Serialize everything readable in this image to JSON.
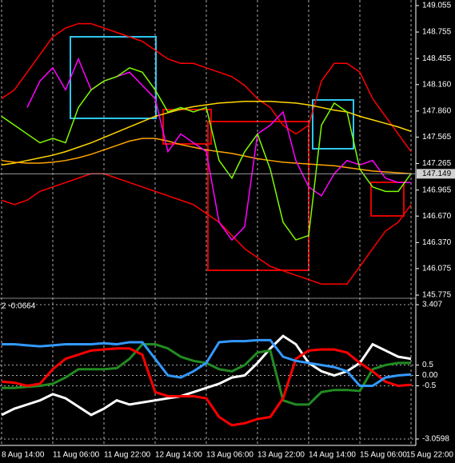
{
  "chart_data": [
    {
      "type": "line",
      "ylim": [
        145.748,
        149.118
      ],
      "yticks": [
        149.055,
        148.755,
        148.455,
        {
          "value": 148.16,
          "label": "148.160"
        },
        {
          "value": 147.86,
          "label": "147.860"
        },
        147.565,
        147.265,
        146.965,
        {
          "value": 146.67,
          "label": "146.670"
        },
        {
          "value": 146.37,
          "label": "146.370"
        },
        146.075,
        145.775
      ],
      "current_price": 147.149,
      "series": [
        {
          "color": "#ff0000",
          "values": [
            148.0,
            148.1,
            148.3,
            148.5,
            148.7,
            148.8,
            148.85,
            148.85,
            148.8,
            148.75,
            148.7,
            148.65,
            148.55,
            148.45,
            148.4,
            148.4,
            148.35,
            148.3,
            148.25,
            148.15,
            148.0,
            147.9,
            147.7,
            147.6,
            147.7,
            148.2,
            148.4,
            148.4,
            148.3,
            148.0,
            147.8,
            147.6,
            147.4
          ]
        },
        {
          "color": "#ff0000",
          "values": [
            146.85,
            146.8,
            146.85,
            146.95,
            147.0,
            147.05,
            147.1,
            147.15,
            147.15,
            147.1,
            147.05,
            147.0,
            146.95,
            146.9,
            146.85,
            146.8,
            146.7,
            146.6,
            146.45,
            146.3,
            146.2,
            146.1,
            146.05,
            146.0,
            145.95,
            145.9,
            145.9,
            145.9,
            146.1,
            146.3,
            146.5,
            146.6,
            146.8
          ]
        },
        {
          "color": "#ffd700",
          "values": [
            147.25,
            147.27,
            147.3,
            147.33,
            147.36,
            147.4,
            147.45,
            147.5,
            147.56,
            147.62,
            147.68,
            147.74,
            147.8,
            147.84,
            147.88,
            147.91,
            147.93,
            147.95,
            147.96,
            147.97,
            147.97,
            147.97,
            147.96,
            147.95,
            147.93,
            147.9,
            147.87,
            147.85,
            147.8,
            147.76,
            147.72,
            147.68,
            147.63
          ]
        },
        {
          "color": "#ffa500",
          "values": [
            147.3,
            147.28,
            147.27,
            147.27,
            147.28,
            147.3,
            147.33,
            147.37,
            147.42,
            147.47,
            147.52,
            147.55,
            147.55,
            147.52,
            147.48,
            147.45,
            147.42,
            147.4,
            147.38,
            147.35,
            147.32,
            147.3,
            147.28,
            147.27,
            147.26,
            147.25,
            147.24,
            147.22,
            147.2,
            147.18,
            147.17,
            147.16,
            147.15
          ]
        },
        {
          "color": "#ff00ff",
          "values": [
            null,
            null,
            147.9,
            148.2,
            148.35,
            148.1,
            148.45,
            148.1,
            148.2,
            148.25,
            148.3,
            148.15,
            148.0,
            147.4,
            147.6,
            147.5,
            147.4,
            146.6,
            146.4,
            146.55,
            147.6,
            147.7,
            147.85,
            147.3,
            147.0,
            146.9,
            147.15,
            147.3,
            147.25,
            147.3,
            147.1,
            147.05,
            147.05
          ]
        },
        {
          "color": "#7cfc00",
          "values": [
            147.8,
            147.7,
            147.6,
            147.5,
            147.55,
            147.5,
            147.9,
            148.1,
            148.2,
            148.25,
            148.35,
            148.3,
            148.1,
            147.85,
            147.9,
            147.85,
            147.9,
            147.3,
            147.1,
            147.4,
            147.6,
            147.2,
            146.6,
            146.4,
            146.45,
            147.7,
            147.95,
            147.85,
            147.2,
            147.0,
            146.95,
            146.95,
            147.15
          ]
        }
      ]
    },
    {
      "type": "line",
      "title": "2 -0.0664",
      "ylim": [
        -3.33,
        3.6
      ],
      "yticks": [
        3.407,
        0.5,
        {
          "value": 0,
          "label": "0.00"
        },
        -0.5,
        -3.0598
      ],
      "categories": [
        "8 Aug 14:00",
        null,
        null,
        null,
        "11 Aug 06:00",
        null,
        null,
        null,
        "11 Aug 22:00",
        null,
        null,
        null,
        "12 Aug 14:00",
        null,
        null,
        null,
        "13 Aug 06:00",
        null,
        null,
        null,
        "13 Aug 22:00",
        null,
        null,
        null,
        "14 Aug 14:00",
        null,
        null,
        null,
        "15 Aug 06:00",
        null,
        null,
        null,
        "15 Aug 22:00"
      ],
      "series": [
        {
          "color": "#ffffff",
          "values": [
            -1.9,
            -1.6,
            -1.4,
            -1.2,
            -0.9,
            -1.1,
            -1.5,
            -1.9,
            -1.6,
            -1.2,
            -1.4,
            -1.3,
            -1.2,
            -1.1,
            -1.0,
            -0.8,
            -0.6,
            -0.4,
            -0.1,
            0.0,
            0.6,
            1.3,
            1.9,
            1.5,
            0.6,
            0.2,
            0.0,
            0.2,
            0.6,
            1.5,
            1.2,
            0.9,
            0.8
          ]
        },
        {
          "color": "#228b22",
          "values": [
            -0.6,
            -0.6,
            -0.55,
            -0.5,
            -0.4,
            -0.1,
            0.3,
            0.3,
            0.3,
            0.35,
            0.8,
            1.5,
            1.5,
            1.3,
            0.9,
            0.7,
            0.6,
            0.3,
            0.2,
            0.5,
            1.1,
            1.2,
            -1.2,
            -1.4,
            -1.4,
            -0.8,
            -0.7,
            -0.7,
            -0.75,
            0.3,
            0.5,
            0.6,
            0.6
          ]
        },
        {
          "color": "#ff0000",
          "values": [
            -0.3,
            -0.35,
            -0.5,
            -0.4,
            0.3,
            0.8,
            1.0,
            1.2,
            1.25,
            1.3,
            1.3,
            1.0,
            -0.8,
            -1.0,
            -1.0,
            -1.0,
            -1.1,
            -2.0,
            -2.4,
            -2.3,
            -2.1,
            -2.0,
            -1.1,
            0.8,
            1.2,
            1.25,
            1.25,
            1.1,
            0.6,
            0.2,
            -0.3,
            -0.5,
            -0.45
          ]
        },
        {
          "color": "#3399ff",
          "values": [
            1.5,
            1.5,
            1.45,
            1.4,
            1.45,
            1.5,
            1.5,
            1.5,
            1.55,
            1.5,
            1.6,
            1.6,
            0.8,
            0.0,
            -0.1,
            0.2,
            0.6,
            1.6,
            1.65,
            1.65,
            1.7,
            1.7,
            0.9,
            0.7,
            0.6,
            0.5,
            0.4,
            0.2,
            -0.5,
            -0.5,
            -0.1,
            0.0,
            0.05
          ]
        }
      ]
    }
  ]
}
